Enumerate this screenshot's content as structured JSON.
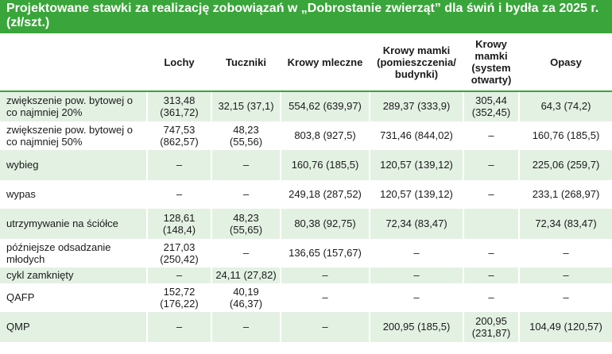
{
  "title": "Projektowane stawki za realizację zobowiązań w „Dobrostanie zwierząt” dla świń i bydła za 2025 r. (zł/szt.)",
  "columns": [
    "",
    "Lochy",
    "Tuczniki",
    "Krowy mleczne",
    "Krowy mamki (pomieszczenia/ budynki)",
    "Krowy mamki (system otwarty)",
    "Opasy"
  ],
  "rows": [
    {
      "label": "zwiększenie pow. bytowej o co najmniej 20%",
      "cells": [
        "313,48 (361,72)",
        "32,15 (37,1)",
        "554,62 (639,97)",
        "289,37 (333,9)",
        "305,44 (352,45)",
        "64,3 (74,2)"
      ]
    },
    {
      "label": "zwiększenie pow. bytowej o co najmniej 50%",
      "cells": [
        "747,53 (862,57)",
        "48,23 (55,56)",
        "803,8 (927,5)",
        "731,46 (844,02)",
        "–",
        "160,76 (185,5)"
      ]
    },
    {
      "label": "wybieg",
      "cells": [
        "–",
        "–",
        "160,76 (185,5)",
        "120,57 (139,12)",
        "–",
        "225,06 (259,7)"
      ]
    },
    {
      "label": "wypas",
      "cells": [
        "–",
        "–",
        "249,18 (287,52)",
        "120,57 (139,12)",
        "–",
        "233,1 (268,97)"
      ]
    },
    {
      "label": "utrzymywanie na ściółce",
      "cells": [
        "128,61 (148,4)",
        "48,23 (55,65)",
        "80,38 (92,75)",
        "72,34 (83,47)",
        "",
        "72,34 (83,47)"
      ]
    },
    {
      "label": "późniejsze odsadzanie młodych",
      "cells": [
        "217,03 (250,42)",
        "–",
        "136,65 (157,67)",
        "–",
        "–",
        "–"
      ]
    },
    {
      "label": "cykl zamknięty",
      "cells": [
        "–",
        "24,11 (27,82)",
        "–",
        "–",
        "–",
        "–"
      ]
    },
    {
      "label": "QAFP",
      "cells": [
        "152,72 (176,22)",
        "40,19 (46,37)",
        "–",
        "–",
        "–",
        "–"
      ]
    },
    {
      "label": "QMP",
      "cells": [
        "–",
        "–",
        "–",
        "200,95 (185,5)",
        "200,95 (231,87)",
        "104,49 (120,57)"
      ]
    }
  ]
}
